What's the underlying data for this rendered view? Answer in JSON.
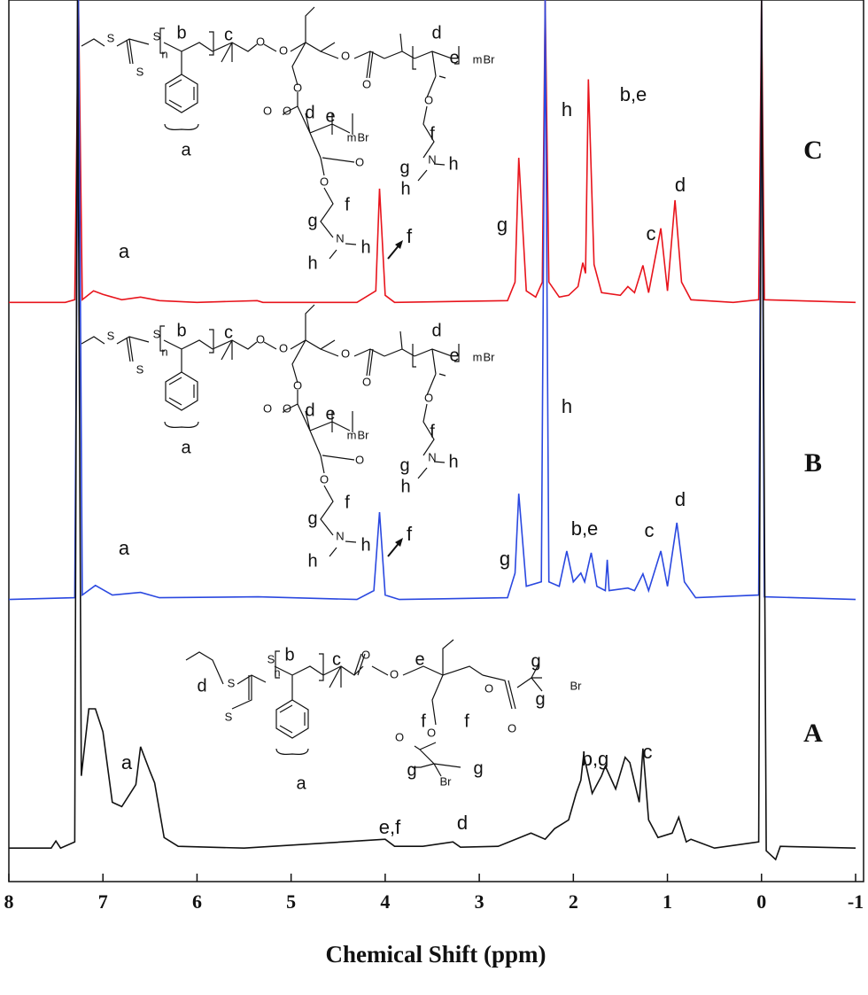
{
  "chart_data": {
    "type": "line",
    "x_label": "Chemical Shift (ppm)",
    "xlim": [
      8,
      -1
    ],
    "xticks": [
      8,
      7,
      6,
      5,
      4,
      3,
      2,
      1,
      0,
      -1
    ],
    "ylim": [
      0,
      100
    ],
    "series": [
      {
        "name": "C",
        "color": "#e8141c",
        "x": [
          8.0,
          7.4,
          7.3,
          7.26,
          7.22,
          7.1,
          7.0,
          6.8,
          6.6,
          6.4,
          6.0,
          5.36,
          5.3,
          4.3,
          4.1,
          4.06,
          4.0,
          3.9,
          2.7,
          2.62,
          2.58,
          2.5,
          2.4,
          2.33,
          2.3,
          2.26,
          2.15,
          2.05,
          1.95,
          1.9,
          1.87,
          1.84,
          1.78,
          1.7,
          1.5,
          1.42,
          1.35,
          1.26,
          1.2,
          1.07,
          1.0,
          0.92,
          0.85,
          0.75,
          0.3,
          0.03,
          0.0,
          -0.03,
          -1.0
        ],
        "values": [
          65.7,
          65.7,
          66,
          100,
          66,
          67,
          66.6,
          66,
          66.3,
          65.9,
          65.7,
          65.9,
          65.7,
          65.7,
          67,
          78.6,
          66.5,
          65.7,
          65.9,
          68,
          82.1,
          67,
          66.3,
          68,
          100,
          68,
          66.3,
          66.5,
          67.5,
          70.2,
          69,
          91,
          70,
          66.8,
          66.5,
          67.5,
          66.8,
          69.9,
          66.8,
          74.1,
          67,
          77.3,
          68,
          66,
          65.7,
          66,
          100,
          66,
          65.7
        ]
      },
      {
        "name": "B",
        "color": "#2a48e0",
        "x": [
          8.0,
          7.3,
          7.26,
          7.22,
          7.08,
          6.9,
          6.6,
          6.4,
          5.35,
          4.3,
          4.12,
          4.06,
          4.0,
          3.85,
          2.7,
          2.62,
          2.58,
          2.5,
          2.34,
          2.3,
          2.26,
          2.15,
          2.07,
          2.0,
          1.92,
          1.88,
          1.81,
          1.75,
          1.66,
          1.64,
          1.62,
          1.42,
          1.35,
          1.26,
          1.2,
          1.07,
          1.0,
          0.9,
          0.82,
          0.7,
          0.03,
          0.0,
          -0.03,
          -1.0
        ],
        "values": [
          32,
          32.2,
          100,
          32.5,
          33.6,
          32.5,
          32.8,
          32.2,
          32.3,
          32,
          33,
          41.9,
          32.5,
          32,
          32.2,
          35,
          44,
          33.5,
          34,
          100,
          34,
          33.5,
          37.5,
          34,
          35,
          34,
          37.3,
          33.5,
          33,
          36.5,
          33,
          33.3,
          33,
          34.9,
          33,
          37.5,
          33.5,
          40.7,
          34,
          32.2,
          32.5,
          100,
          32.3,
          32
        ]
      },
      {
        "name": "A",
        "color": "#111111",
        "x": [
          8.0,
          7.55,
          7.5,
          7.45,
          7.3,
          7.27,
          7.23,
          7.15,
          7.08,
          7.0,
          6.9,
          6.8,
          6.65,
          6.6,
          6.5,
          6.45,
          6.35,
          6.2,
          5.5,
          4.0,
          3.9,
          3.6,
          3.28,
          3.2,
          2.8,
          2.45,
          2.3,
          2.2,
          2.05,
          1.97,
          1.92,
          1.89,
          1.8,
          1.7,
          1.66,
          1.55,
          1.45,
          1.4,
          1.3,
          1.26,
          1.2,
          1.1,
          0.95,
          0.88,
          0.8,
          0.75,
          0.5,
          0.03,
          0.0,
          -0.05,
          -0.15,
          -0.2,
          -1.0
        ],
        "values": [
          3.8,
          3.8,
          4.6,
          3.8,
          4.5,
          100,
          12,
          19.6,
          19.6,
          17,
          9,
          8.5,
          11,
          15.3,
          12.5,
          11.2,
          5,
          4,
          3.8,
          4.8,
          4,
          4,
          4.5,
          3.9,
          4,
          5.5,
          4.8,
          6,
          7,
          10,
          11.5,
          14.4,
          10,
          12,
          13.1,
          10.5,
          14.1,
          13.5,
          9,
          15.1,
          7,
          5,
          5.5,
          7.3,
          4.5,
          4.8,
          3.8,
          4.5,
          100,
          3.5,
          2.5,
          4,
          3.8
        ]
      }
    ],
    "panels": [
      {
        "peaks": [
          "a",
          "f",
          "g",
          "h",
          "b,e",
          "c",
          "d"
        ],
        "structure": [
          "S",
          "S",
          "S",
          "n",
          "b",
          "c",
          "O",
          "O",
          "O",
          "O",
          "O",
          "O",
          "d",
          "e",
          "m",
          "Br",
          "a",
          "O",
          "O",
          "d",
          "e",
          "m",
          "Br",
          "O",
          "O",
          "f",
          "g",
          "N",
          "h",
          "h",
          "f",
          "g",
          "N",
          "h",
          "h"
        ]
      },
      {
        "peaks": [
          "a",
          "f",
          "g",
          "h",
          "b,e",
          "c",
          "d"
        ],
        "structure": [
          "S",
          "S",
          "S",
          "n",
          "b",
          "c",
          "O",
          "O",
          "O",
          "O",
          "O",
          "O",
          "d",
          "e",
          "m",
          "Br",
          "a",
          "O",
          "O",
          "d",
          "e",
          "m",
          "Br",
          "O",
          "O",
          "f",
          "g",
          "N",
          "h",
          "h",
          "f",
          "g",
          "N",
          "h",
          "h"
        ]
      },
      {
        "peaks": [
          "a",
          "e,f",
          "d",
          "b,g",
          "c"
        ],
        "structure": [
          "d",
          "S",
          "S",
          "S",
          "n",
          "b",
          "c",
          "O",
          "O",
          "e",
          "f",
          "f",
          "O",
          "O",
          "g",
          "Br",
          "g",
          "O",
          "O",
          "g",
          "Br",
          "g",
          "a"
        ]
      }
    ]
  }
}
